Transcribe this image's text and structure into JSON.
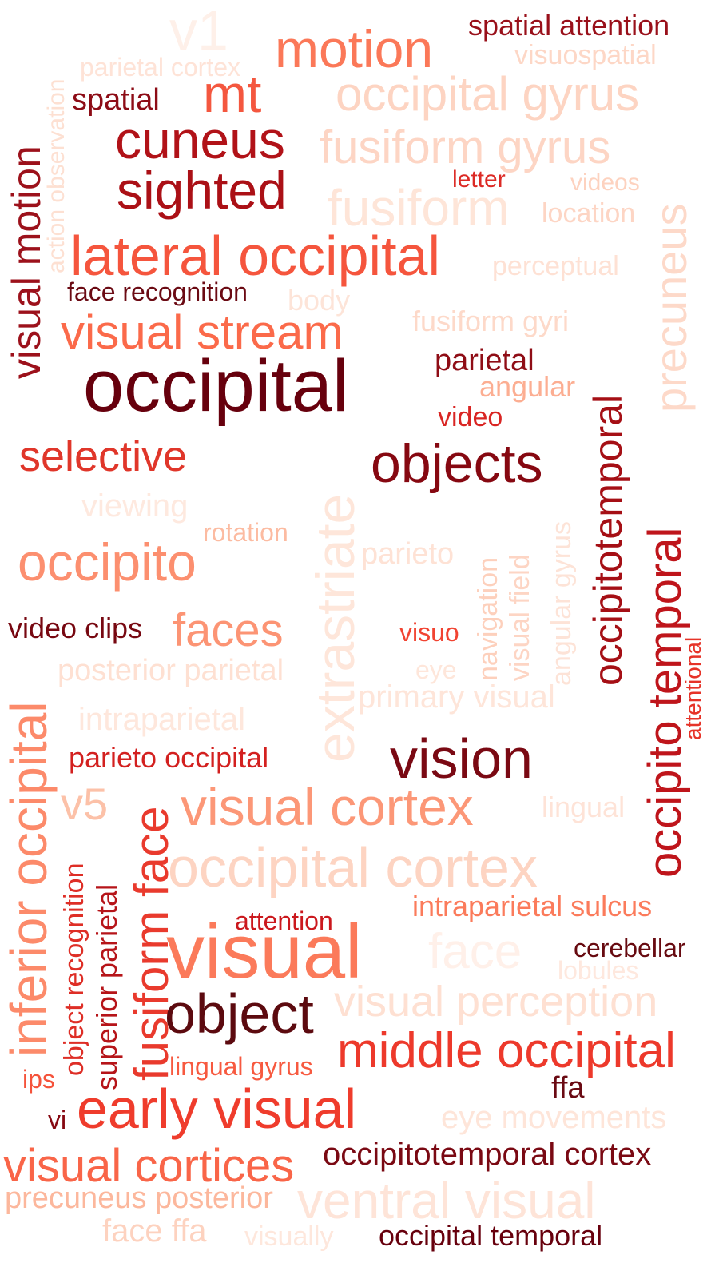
{
  "words": [
    {
      "text": "v1",
      "color": "#fef0e9",
      "rotated": false
    },
    {
      "text": "motion",
      "color": "#fb7858",
      "rotated": false
    },
    {
      "text": "spatial attention",
      "color": "#99101a",
      "rotated": false
    },
    {
      "text": "visuospatial",
      "color": "#fdd7c6",
      "rotated": false
    },
    {
      "text": "parietal cortex",
      "color": "#fee3d7",
      "rotated": false
    },
    {
      "text": "action observation",
      "color": "#fde0d2",
      "rotated": true
    },
    {
      "text": "mt",
      "color": "#f4573f",
      "rotated": false
    },
    {
      "text": "spatial",
      "color": "#8d0c16",
      "rotated": false
    },
    {
      "text": "occipital gyrus",
      "color": "#fdd4c2",
      "rotated": false
    },
    {
      "text": "visual motion",
      "color": "#9c111b",
      "rotated": true
    },
    {
      "text": "cuneus",
      "color": "#b11218",
      "rotated": false
    },
    {
      "text": "fusiform gyrus",
      "color": "#fdd5c4",
      "rotated": false
    },
    {
      "text": "letter",
      "color": "#dc2a25",
      "rotated": false
    },
    {
      "text": "videos",
      "color": "#fdd2bf",
      "rotated": false
    },
    {
      "text": "sighted",
      "color": "#ab1016",
      "rotated": false
    },
    {
      "text": "precuneus",
      "color": "#fdd9c9",
      "rotated": true
    },
    {
      "text": "fusiform",
      "color": "#fee5d8",
      "rotated": false
    },
    {
      "text": "location",
      "color": "#fdd5c4",
      "rotated": false
    },
    {
      "text": "lateral occipital",
      "color": "#f5553d",
      "rotated": false
    },
    {
      "text": "perceptual",
      "color": "#fee1d4",
      "rotated": false
    },
    {
      "text": "face recognition",
      "color": "#6b0a13",
      "rotated": false
    },
    {
      "text": "body",
      "color": "#fde4d8",
      "rotated": false
    },
    {
      "text": "visual stream",
      "color": "#fb6a4a",
      "rotated": false
    },
    {
      "text": "fusiform gyri",
      "color": "#fdd9c9",
      "rotated": false
    },
    {
      "text": "occipitotemporal",
      "color": "#a50f15",
      "rotated": true
    },
    {
      "text": "parietal",
      "color": "#8f0d16",
      "rotated": false
    },
    {
      "text": "occipital",
      "color": "#67000d",
      "rotated": false
    },
    {
      "text": "angular",
      "color": "#fcae92",
      "rotated": false
    },
    {
      "text": "video",
      "color": "#d92523",
      "rotated": false
    },
    {
      "text": "extrastriate",
      "color": "#fee6da",
      "rotated": true
    },
    {
      "text": "selective",
      "color": "#e0362a",
      "rotated": false
    },
    {
      "text": "objects",
      "color": "#860811",
      "rotated": false
    },
    {
      "text": "viewing",
      "color": "#fee9df",
      "rotated": false
    },
    {
      "text": "rotation",
      "color": "#fcbba1",
      "rotated": false
    },
    {
      "text": "occipito temporal",
      "color": "#bf151b",
      "rotated": true
    },
    {
      "text": "occipito",
      "color": "#fc8f6f",
      "rotated": false
    },
    {
      "text": "parieto",
      "color": "#fee2d5",
      "rotated": false
    },
    {
      "text": "navigation",
      "color": "#fdd0bc",
      "rotated": true
    },
    {
      "text": "visual field",
      "color": "#fdd5c4",
      "rotated": true
    },
    {
      "text": "angular gyrus",
      "color": "#fde3d7",
      "rotated": true
    },
    {
      "text": "video clips",
      "color": "#770811",
      "rotated": false
    },
    {
      "text": "faces",
      "color": "#fc9474",
      "rotated": false
    },
    {
      "text": "visuo",
      "color": "#f14331",
      "rotated": false
    },
    {
      "text": "inferior occipital",
      "color": "#fc8a6a",
      "rotated": true
    },
    {
      "text": "posterior parietal",
      "color": "#fee0d2",
      "rotated": false
    },
    {
      "text": "eye",
      "color": "#fee6da",
      "rotated": false
    },
    {
      "text": "primary visual",
      "color": "#fee5d9",
      "rotated": false
    },
    {
      "text": "attentional",
      "color": "#e63328",
      "rotated": true
    },
    {
      "text": "intraparietal",
      "color": "#fee7dc",
      "rotated": false
    },
    {
      "text": "vision",
      "color": "#7a0913",
      "rotated": false
    },
    {
      "text": "parieto occipital",
      "color": "#d3201f",
      "rotated": false
    },
    {
      "text": "v5",
      "color": "#fcc1a8",
      "rotated": false
    },
    {
      "text": "visual cortex",
      "color": "#fc9777",
      "rotated": false
    },
    {
      "text": "lingual",
      "color": "#fee3d7",
      "rotated": false
    },
    {
      "text": "fusiform face",
      "color": "#e93a2d",
      "rotated": true
    },
    {
      "text": "object recognition",
      "color": "#de2e26",
      "rotated": true
    },
    {
      "text": "superior parietal",
      "color": "#b61419",
      "rotated": true
    },
    {
      "text": "occipital cortex",
      "color": "#fdd4c2",
      "rotated": false
    },
    {
      "text": "intraparietal sulcus",
      "color": "#fb7b5b",
      "rotated": false
    },
    {
      "text": "attention",
      "color": "#cb181d",
      "rotated": false
    },
    {
      "text": "visual",
      "color": "#fb7a5a",
      "rotated": false
    },
    {
      "text": "face",
      "color": "#fff0e9",
      "rotated": false
    },
    {
      "text": "cerebellar",
      "color": "#670a10",
      "rotated": false
    },
    {
      "text": "lobules",
      "color": "#fee8de",
      "rotated": false
    },
    {
      "text": "object",
      "color": "#5c0a0f",
      "rotated": false
    },
    {
      "text": "visual perception",
      "color": "#fee0d2",
      "rotated": false
    },
    {
      "text": "ips",
      "color": "#f5533b",
      "rotated": false
    },
    {
      "text": "lingual gyrus",
      "color": "#f7593f",
      "rotated": false
    },
    {
      "text": "middle occipital",
      "color": "#ed392b",
      "rotated": false
    },
    {
      "text": "ffa",
      "color": "#6a0a13",
      "rotated": false
    },
    {
      "text": "vi",
      "color": "#860811",
      "rotated": false
    },
    {
      "text": "early visual",
      "color": "#ef3c2c",
      "rotated": false
    },
    {
      "text": "eye movements",
      "color": "#fee5d9",
      "rotated": false
    },
    {
      "text": "visual cortices",
      "color": "#f96548",
      "rotated": false
    },
    {
      "text": "occipitotemporal cortex",
      "color": "#7a0913",
      "rotated": false
    },
    {
      "text": "precuneus posterior",
      "color": "#fcb79c",
      "rotated": false
    },
    {
      "text": "ventral visual",
      "color": "#fee4d8",
      "rotated": false
    },
    {
      "text": "face ffa",
      "color": "#fdd2bf",
      "rotated": false
    },
    {
      "text": "visually",
      "color": "#fee7dc",
      "rotated": false
    },
    {
      "text": "occipital temporal",
      "color": "#67000d",
      "rotated": false
    }
  ]
}
